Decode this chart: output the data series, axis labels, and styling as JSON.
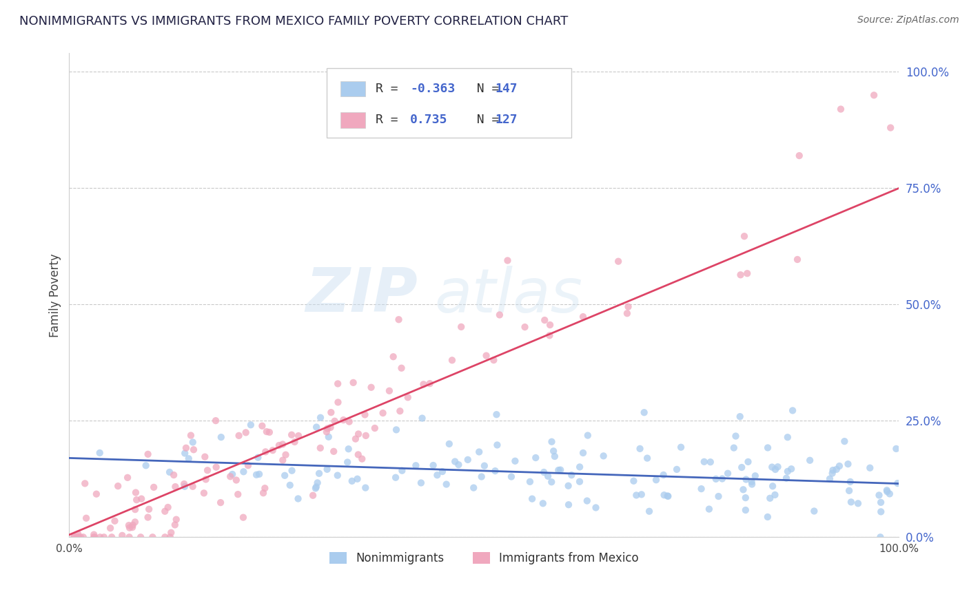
{
  "title": "NONIMMIGRANTS VS IMMIGRANTS FROM MEXICO FAMILY POVERTY CORRELATION CHART",
  "source": "Source: ZipAtlas.com",
  "ylabel": "Family Poverty",
  "xmin": 0.0,
  "xmax": 1.0,
  "ymin": 0.0,
  "ymax": 1.0,
  "ytick_positions": [
    0.0,
    0.25,
    0.5,
    0.75,
    1.0
  ],
  "ytick_labels": [
    "0.0%",
    "25.0%",
    "50.0%",
    "75.0%",
    "100.0%"
  ],
  "nonimmigrant_color": "#aaccee",
  "immigrant_color": "#f0a8be",
  "nonimmigrant_line_color": "#4466bb",
  "immigrant_line_color": "#dd4466",
  "nonimmigrant_line_intercept": 0.17,
  "nonimmigrant_line_slope": -0.055,
  "immigrant_line_intercept": 0.005,
  "immigrant_line_slope": 0.745,
  "R_nonimmigrant": -0.363,
  "N_nonimmigrant": 147,
  "R_immigrant": 0.735,
  "N_immigrant": 127,
  "dot_size": 55,
  "scatter_alpha": 0.75,
  "bottom_legend": [
    "Nonimmigrants",
    "Immigrants from Mexico"
  ]
}
